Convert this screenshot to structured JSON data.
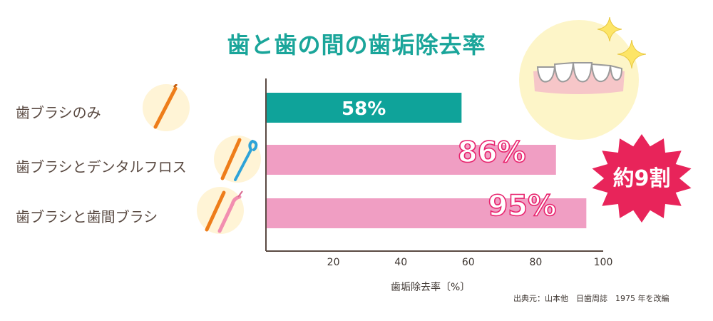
{
  "title": "歯と歯の間の歯垢除去率",
  "categories": [
    {
      "label": "歯ブラシのみ",
      "icon": "toothbrush-icon"
    },
    {
      "label": "歯ブラシとデンタルフロス",
      "icon": "toothbrush-floss-icon"
    },
    {
      "label": "歯ブラシと歯間ブラシ",
      "icon": "toothbrush-interdental-brush-icon"
    }
  ],
  "xlabel": "歯垢除去率〔%〕",
  "source": "出典元：山本他　日歯周誌　1975 年を改編",
  "badge": "約9割",
  "colors": {
    "title": "#1aa59a",
    "bar_brush_only": "#0fa39a",
    "bar_other": "#f09ec3",
    "badge": "#e8245a"
  },
  "chart_data": {
    "type": "bar",
    "orientation": "horizontal",
    "categories": [
      "歯ブラシのみ",
      "歯ブラシとデンタルフロス",
      "歯ブラシと歯間ブラシ"
    ],
    "values": [
      58,
      86,
      95
    ],
    "data_labels": [
      "58%",
      "86%",
      "95%"
    ],
    "xlabel": "歯垢除去率〔%〕",
    "xlim": [
      0,
      100
    ],
    "xticks": [
      20,
      40,
      60,
      80,
      100
    ],
    "grid": false
  }
}
